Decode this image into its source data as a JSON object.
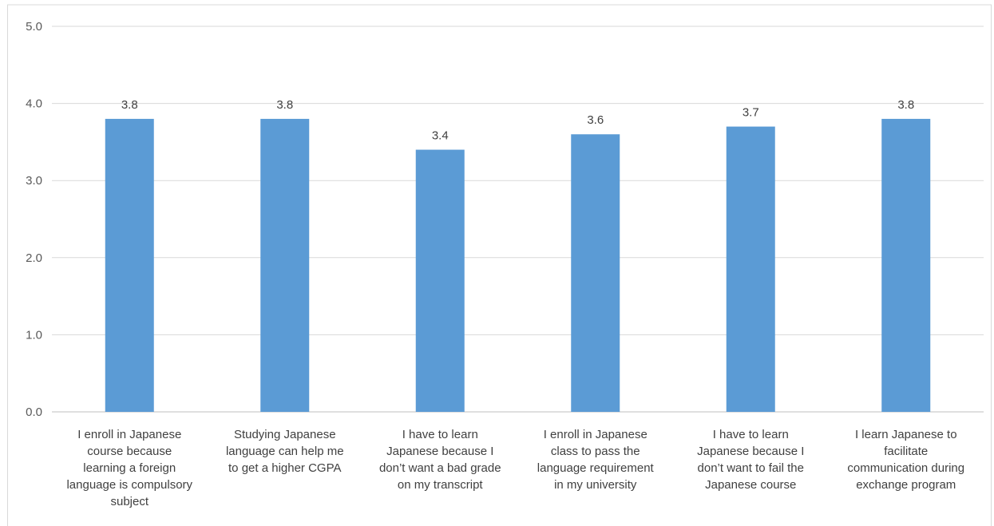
{
  "chart_data": {
    "type": "bar",
    "title": "",
    "xlabel": "",
    "ylabel": "",
    "ylim": [
      0,
      5
    ],
    "yticks": [
      "0.0",
      "1.0",
      "2.0",
      "3.0",
      "4.0",
      "5.0"
    ],
    "grid": true,
    "legend": "none",
    "bar_color": "#5b9bd5",
    "categories": [
      [
        "I enroll  in Japanese",
        "course because",
        "learning a foreign",
        "language is compulsory",
        "subject"
      ],
      [
        "Studying Japanese",
        "language can help me",
        "to get a higher CGPA"
      ],
      [
        "I have to learn",
        "Japanese because I",
        "don’t want a bad grade",
        "on my transcript"
      ],
      [
        "I enroll in Japanese",
        "class to pass the",
        "language requirement",
        "in my university"
      ],
      [
        "I have to learn",
        "Japanese because I",
        "don’t want to fail the",
        "Japanese course"
      ],
      [
        "I learn Japanese to",
        "facilitate",
        "communication during",
        "exchange program"
      ]
    ],
    "values": [
      3.8,
      3.8,
      3.4,
      3.6,
      3.7,
      3.8
    ],
    "data_labels": [
      "3.8",
      "3.8",
      "3.4",
      "3.6",
      "3.7",
      "3.8"
    ]
  }
}
